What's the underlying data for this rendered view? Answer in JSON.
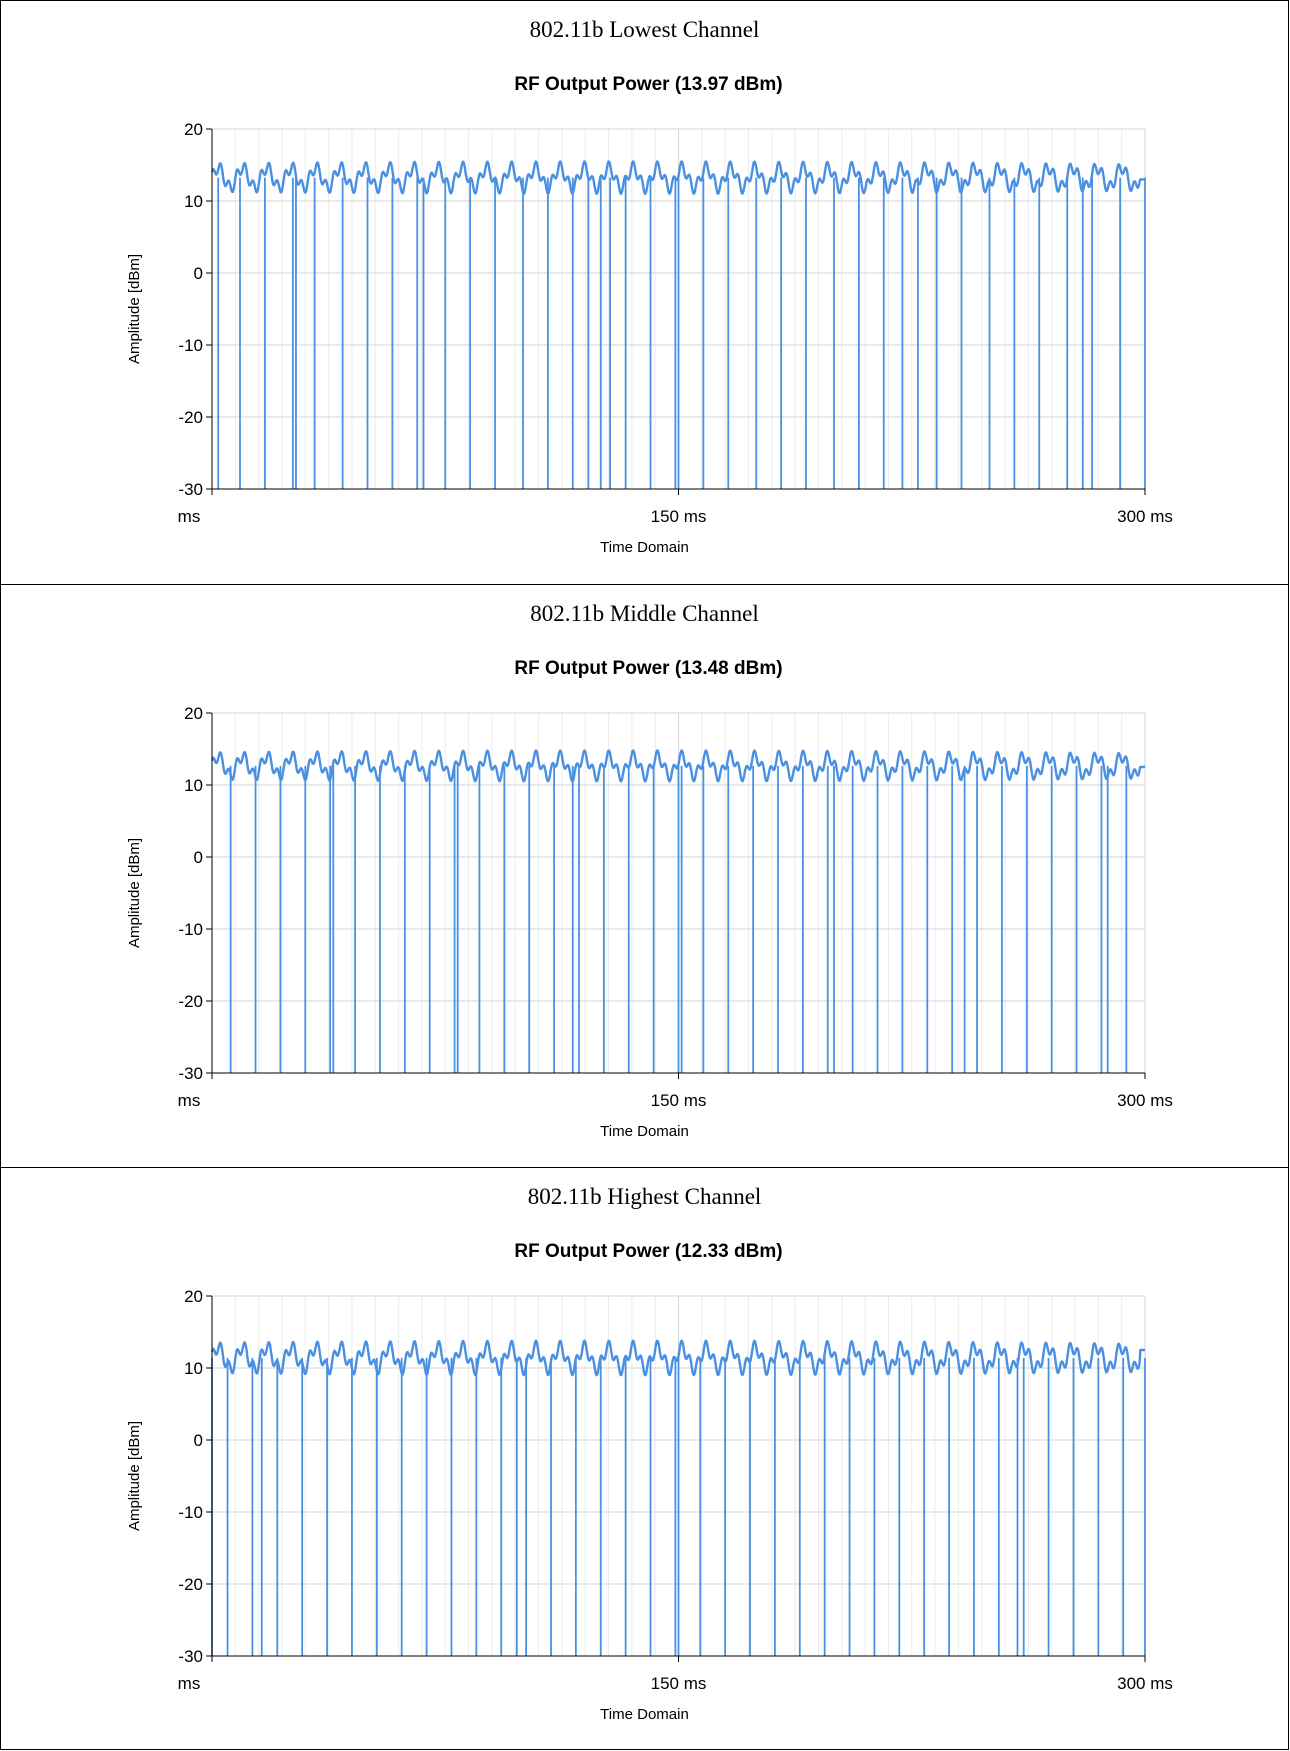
{
  "colors": {
    "series": "#4A90E2",
    "grid_major": "#d4d4d4",
    "grid_minor": "#ececec",
    "axis": "#000000"
  },
  "chart_data": [
    {
      "type": "line",
      "caption": "802.11b Lowest Channel",
      "title": "RF Output Power (13.97 dBm)",
      "xlabel": "Time Domain",
      "ylabel": "Amplitude [dBm]",
      "xlim": [
        0,
        300
      ],
      "ylim": [
        -30,
        20
      ],
      "y_ticks": [
        20,
        10,
        0,
        -10,
        -20,
        -30
      ],
      "x_tick_labels": [
        {
          "x": 0,
          "label": "ms"
        },
        {
          "x": 150,
          "label": "150 ms"
        },
        {
          "x": 300,
          "label": "300 ms"
        }
      ],
      "grid": true,
      "envelope": {
        "low": 11,
        "high": 15.5,
        "end": 13
      },
      "dropouts_ms": [
        2,
        9,
        17,
        26,
        27,
        33,
        42,
        50,
        58,
        66,
        68,
        75,
        83,
        91,
        100,
        108,
        116,
        121,
        125,
        128,
        133,
        141,
        149,
        150,
        158,
        166,
        175,
        183,
        191,
        200,
        208,
        216,
        222,
        227,
        233,
        241,
        250,
        258,
        266,
        275,
        280,
        283,
        292,
        300
      ]
    },
    {
      "type": "line",
      "caption": "802.11b Middle Channel",
      "title": "RF Output Power (13.48 dBm)",
      "xlabel": "Time Domain",
      "ylabel": "Amplitude [dBm]",
      "xlim": [
        0,
        300
      ],
      "ylim": [
        -30,
        20
      ],
      "y_ticks": [
        20,
        10,
        0,
        -10,
        -20,
        -30
      ],
      "x_tick_labels": [
        {
          "x": 0,
          "label": "ms"
        },
        {
          "x": 150,
          "label": "150 ms"
        },
        {
          "x": 300,
          "label": "300 ms"
        }
      ],
      "grid": true,
      "envelope": {
        "low": 10.5,
        "high": 14.8,
        "end": 12.5
      },
      "dropouts_ms": [
        6,
        14,
        22,
        30,
        38,
        39,
        46,
        54,
        62,
        70,
        78,
        79,
        86,
        94,
        102,
        110,
        116,
        118,
        126,
        134,
        142,
        150,
        151,
        158,
        166,
        174,
        182,
        190,
        198,
        200,
        206,
        214,
        222,
        230,
        238,
        242,
        246,
        254,
        262,
        270,
        278,
        286,
        288,
        294
      ]
    },
    {
      "type": "line",
      "caption": "802.11b Highest Channel",
      "title": "RF Output Power (12.33 dBm)",
      "xlabel": "Time Domain",
      "ylabel": "Amplitude [dBm]",
      "xlim": [
        0,
        300
      ],
      "ylim": [
        -30,
        20
      ],
      "y_ticks": [
        20,
        10,
        0,
        -10,
        -20,
        -30
      ],
      "x_tick_labels": [
        {
          "x": 0,
          "label": "ms"
        },
        {
          "x": 150,
          "label": "150 ms"
        },
        {
          "x": 300,
          "label": "300 ms"
        }
      ],
      "grid": true,
      "envelope": {
        "low": 9,
        "high": 13.8,
        "end": 12.5
      },
      "dropouts_ms": [
        0,
        5,
        13,
        16,
        21,
        29,
        37,
        45,
        53,
        61,
        69,
        77,
        85,
        93,
        98,
        101,
        109,
        117,
        125,
        133,
        141,
        149,
        150,
        157,
        165,
        173,
        181,
        189,
        197,
        205,
        213,
        221,
        229,
        237,
        245,
        253,
        259,
        261,
        269,
        277,
        285,
        293,
        300
      ]
    }
  ]
}
